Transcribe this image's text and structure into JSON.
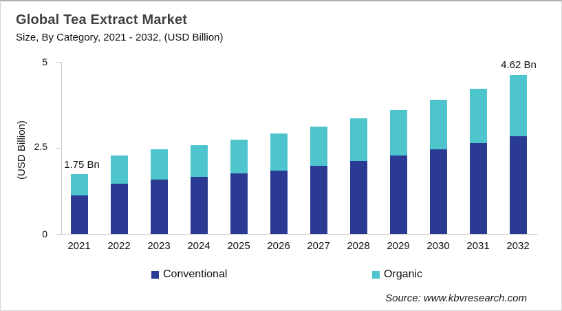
{
  "header": {
    "title": "Global Tea Extract Market",
    "subtitle": "Size, By Category, 2021 - 2032, (USD Billion)"
  },
  "chart_data": {
    "type": "bar",
    "stacked": true,
    "title": "Global Tea Extract Market",
    "subtitle": "Size, By Category, 2021 - 2032, (USD Billion)",
    "ylabel": "(USD Billion)",
    "ylim": [
      0,
      5
    ],
    "yticks": [
      0,
      2.5,
      5
    ],
    "ytick_labels": [
      "0",
      "2.5",
      "5"
    ],
    "grid": false,
    "legend_position": "bottom",
    "categories": [
      "2021",
      "2022",
      "2023",
      "2024",
      "2025",
      "2026",
      "2027",
      "2028",
      "2029",
      "2030",
      "2031",
      "2032"
    ],
    "series": [
      {
        "name": "Conventional",
        "color": "#2b3a92",
        "values": [
          1.13,
          1.46,
          1.58,
          1.66,
          1.76,
          1.85,
          1.98,
          2.12,
          2.28,
          2.46,
          2.64,
          2.84
        ]
      },
      {
        "name": "Organic",
        "color": "#4ec5cd",
        "values": [
          0.62,
          0.82,
          0.88,
          0.93,
          0.99,
          1.07,
          1.15,
          1.24,
          1.33,
          1.45,
          1.58,
          1.78
        ]
      }
    ],
    "totals": [
      1.75,
      2.28,
      2.46,
      2.59,
      2.75,
      2.92,
      3.13,
      3.36,
      3.61,
      3.91,
      4.22,
      4.62
    ],
    "annotations": [
      {
        "category": "2021",
        "text": "1.75 Bn"
      },
      {
        "category": "2032",
        "text": "4.62 Bn"
      }
    ]
  },
  "legend": {
    "items": [
      {
        "label": "Conventional",
        "color": "#2b3a92"
      },
      {
        "label": "Organic",
        "color": "#4ec5cd"
      }
    ]
  },
  "source": {
    "text": "Source: www.kbvresearch.com"
  },
  "colors": {
    "conventional": "#2b3a92",
    "organic": "#4ec5cd",
    "axis": "#cccccc",
    "title": "#404040"
  }
}
